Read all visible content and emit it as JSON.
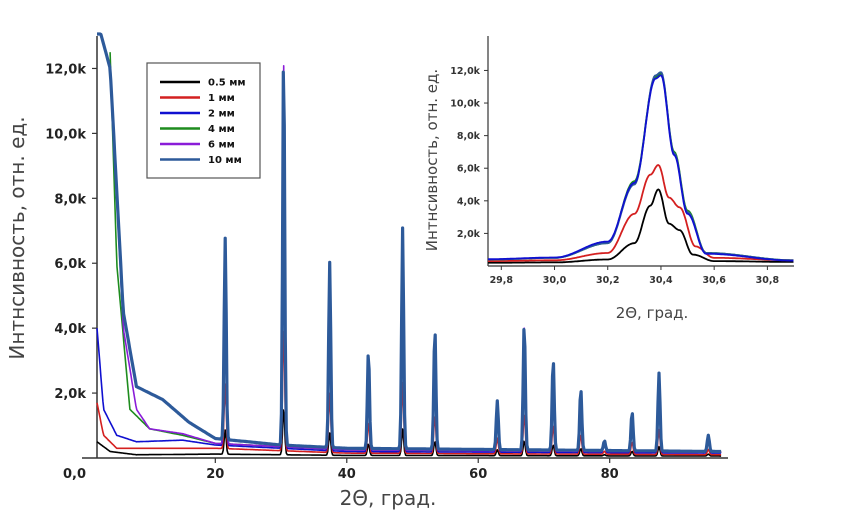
{
  "chart_data": [
    {
      "type": "line",
      "title": "",
      "xlabel": "2Θ, град.",
      "ylabel": "Интнсивность, отн. ед.",
      "xlim": [
        2,
        98
      ],
      "ylim": [
        0,
        13000
      ],
      "x_ticks": [
        20,
        40,
        60,
        80
      ],
      "x_tick_labels": [
        "20",
        "40",
        "60",
        "80"
      ],
      "y_ticks": [
        0,
        2000,
        4000,
        6000,
        8000,
        10000,
        12000
      ],
      "y_tick_labels": [
        "0,0",
        "2,0k",
        "4,0k",
        "6,0k",
        "8,0k",
        "10,0k",
        "12,0k"
      ],
      "grid": false,
      "legend_position": "top-left",
      "series": [
        {
          "name": "0.5 мм",
          "color": "#000000"
        },
        {
          "name": "1 мм",
          "color": "#d42020"
        },
        {
          "name": "2 мм",
          "color": "#1010d0"
        },
        {
          "name": "4 мм",
          "color": "#1e8c1e"
        },
        {
          "name": "6 мм",
          "color": "#8a1cd8"
        },
        {
          "name": "10 мм",
          "color": "#2d5a9a"
        }
      ],
      "background": [
        {
          "series": "0.5 мм",
          "points": [
            [
              2,
              500
            ],
            [
              4,
              200
            ],
            [
              8,
              100
            ],
            [
              20,
              120
            ],
            [
              40,
              80
            ],
            [
              97,
              60
            ]
          ]
        },
        {
          "series": "1 мм",
          "points": [
            [
              2,
              1700
            ],
            [
              3,
              700
            ],
            [
              5,
              300
            ],
            [
              10,
              300
            ],
            [
              20,
              300
            ],
            [
              40,
              150
            ],
            [
              97,
              100
            ]
          ]
        },
        {
          "series": "2 мм",
          "points": [
            [
              2,
              4000
            ],
            [
              3,
              1500
            ],
            [
              5,
              700
            ],
            [
              8,
              500
            ],
            [
              15,
              550
            ],
            [
              20,
              400
            ],
            [
              40,
              200
            ],
            [
              97,
              150
            ]
          ]
        },
        {
          "series": "4 мм",
          "points": [
            [
              4,
              12500
            ],
            [
              5,
              6000
            ],
            [
              7,
              1500
            ],
            [
              10,
              900
            ],
            [
              15,
              700
            ],
            [
              20,
              450
            ],
            [
              40,
              250
            ],
            [
              97,
              180
            ]
          ]
        },
        {
          "series": "6 мм",
          "points": [
            [
              4,
              12000
            ],
            [
              6,
              4000
            ],
            [
              8,
              1500
            ],
            [
              10,
              900
            ],
            [
              15,
              750
            ],
            [
              20,
              450
            ],
            [
              40,
              250
            ],
            [
              97,
              180
            ]
          ]
        },
        {
          "series": "10 мм",
          "points": [
            [
              2,
              13500
            ],
            [
              4,
              12000
            ],
            [
              6,
              4500
            ],
            [
              8,
              2200
            ],
            [
              12,
              1800
            ],
            [
              16,
              1100
            ],
            [
              20,
              600
            ],
            [
              30,
              400
            ],
            [
              40,
              300
            ],
            [
              97,
              200
            ]
          ]
        }
      ],
      "peaks": [
        {
          "x": 21.5,
          "height": 6200
        },
        {
          "x": 30.4,
          "height": 12100
        },
        {
          "x": 37.4,
          "height": 5700
        },
        {
          "x": 43.3,
          "height": 3000
        },
        {
          "x": 48.5,
          "height": 6800
        },
        {
          "x": 53.4,
          "height": 3700
        },
        {
          "x": 62.9,
          "height": 1500
        },
        {
          "x": 67.0,
          "height": 3900
        },
        {
          "x": 71.4,
          "height": 2800
        },
        {
          "x": 75.6,
          "height": 1900
        },
        {
          "x": 79.2,
          "height": 300
        },
        {
          "x": 83.4,
          "height": 1200
        },
        {
          "x": 87.5,
          "height": 2400
        },
        {
          "x": 95.0,
          "height": 500
        }
      ]
    },
    {
      "type": "line",
      "title": "",
      "xlabel": "2Θ, град.",
      "ylabel": "Интнсивность, отн. ед.",
      "xlim": [
        29.75,
        30.9
      ],
      "ylim": [
        0,
        13500
      ],
      "x_ticks": [
        29.8,
        30.0,
        30.2,
        30.4,
        30.6,
        30.8
      ],
      "x_tick_labels": [
        "29,8",
        "30,0",
        "30,2",
        "30,4",
        "30,6",
        "30,8"
      ],
      "y_ticks": [
        2000,
        4000,
        6000,
        8000,
        10000,
        12000
      ],
      "y_tick_labels": [
        "2,0k",
        "4,0k",
        "6,0k",
        "8,0k",
        "10,0k",
        "12,0k"
      ],
      "grid": false,
      "series": [
        {
          "name": "0.5 мм",
          "color": "#000000",
          "points": [
            [
              29.75,
              200
            ],
            [
              30.0,
              220
            ],
            [
              30.2,
              400
            ],
            [
              30.3,
              1400
            ],
            [
              30.36,
              3700
            ],
            [
              30.39,
              4700
            ],
            [
              30.43,
              2600
            ],
            [
              30.47,
              2200
            ],
            [
              30.52,
              700
            ],
            [
              30.6,
              300
            ],
            [
              30.9,
              250
            ]
          ]
        },
        {
          "name": "1 мм",
          "color": "#d42020",
          "points": [
            [
              29.75,
              300
            ],
            [
              30.0,
              350
            ],
            [
              30.2,
              800
            ],
            [
              30.3,
              3200
            ],
            [
              30.36,
              5600
            ],
            [
              30.39,
              6200
            ],
            [
              30.43,
              4200
            ],
            [
              30.47,
              3600
            ],
            [
              30.53,
              1200
            ],
            [
              30.6,
              500
            ],
            [
              30.9,
              350
            ]
          ]
        },
        {
          "name": "4 мм",
          "color": "#1e8c1e",
          "points": [
            [
              29.75,
              400
            ],
            [
              30.0,
              500
            ],
            [
              30.2,
              1400
            ],
            [
              30.3,
              5200
            ],
            [
              30.38,
              11600
            ],
            [
              30.4,
              11800
            ],
            [
              30.45,
              7000
            ],
            [
              30.5,
              3400
            ],
            [
              30.57,
              800
            ],
            [
              30.9,
              350
            ]
          ]
        },
        {
          "name": "10 мм",
          "color": "#2d5a9a",
          "points": [
            [
              29.75,
              400
            ],
            [
              30.0,
              500
            ],
            [
              30.2,
              1400
            ],
            [
              30.3,
              5000
            ],
            [
              30.38,
              11700
            ],
            [
              30.4,
              11900
            ],
            [
              30.45,
              6900
            ],
            [
              30.5,
              3300
            ],
            [
              30.57,
              800
            ],
            [
              30.9,
              350
            ]
          ]
        },
        {
          "name": "2 мм",
          "color": "#1010d0",
          "points": [
            [
              29.75,
              420
            ],
            [
              30.0,
              520
            ],
            [
              30.2,
              1500
            ],
            [
              30.3,
              5100
            ],
            [
              30.38,
              11500
            ],
            [
              30.4,
              11700
            ],
            [
              30.45,
              6800
            ],
            [
              30.5,
              3200
            ],
            [
              30.57,
              750
            ],
            [
              30.9,
              330
            ]
          ]
        }
      ]
    }
  ]
}
